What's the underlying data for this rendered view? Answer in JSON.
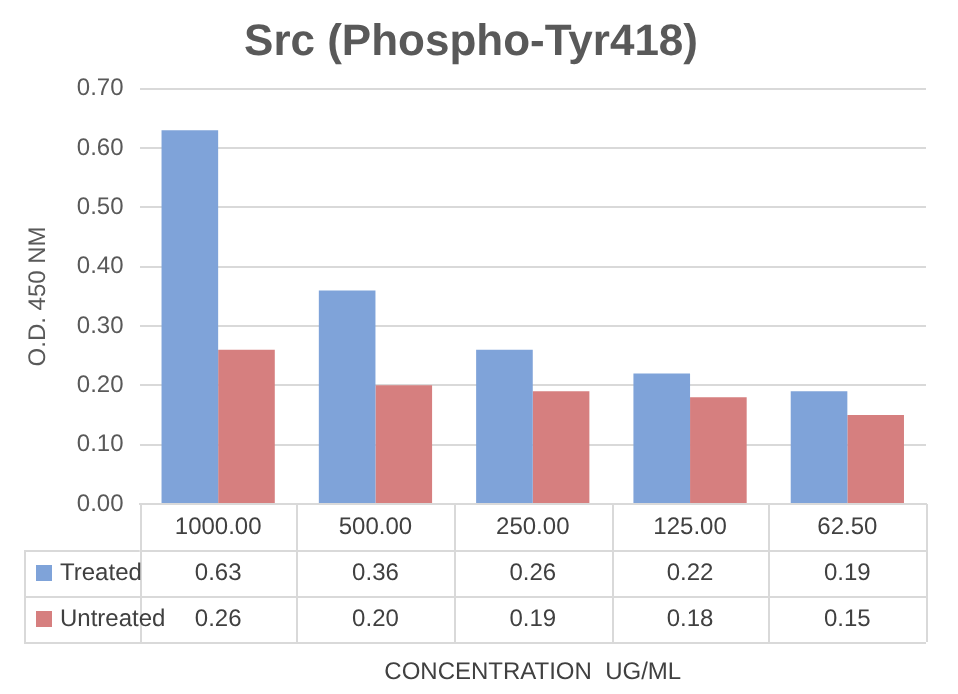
{
  "chart_data": {
    "type": "bar",
    "title": "Src (Phospho-Tyr418)",
    "xlabel": "CONCENTRATION  UG/ML",
    "ylabel": "O.D. 450 NM",
    "categories": [
      "1000.00",
      "500.00",
      "250.00",
      "125.00",
      "62.50"
    ],
    "series": [
      {
        "name": "Treated",
        "color": "#7fa3d9",
        "values": [
          0.63,
          0.36,
          0.26,
          0.22,
          0.19
        ],
        "value_labels": [
          "0.63",
          "0.36",
          "0.26",
          "0.22",
          "0.19"
        ]
      },
      {
        "name": "Untreated",
        "color": "#d67f7f",
        "values": [
          0.26,
          0.2,
          0.19,
          0.18,
          0.15
        ],
        "value_labels": [
          "0.26",
          "0.20",
          "0.19",
          "0.18",
          "0.15"
        ]
      }
    ],
    "ylim": [
      0,
      0.7
    ],
    "yticks": [
      {
        "value": 0,
        "label": "0.00"
      },
      {
        "value": 0.1,
        "label": "0.10"
      },
      {
        "value": 0.2,
        "label": "0.20"
      },
      {
        "value": 0.3,
        "label": "0.30"
      },
      {
        "value": 0.4,
        "label": "0.40"
      },
      {
        "value": 0.5,
        "label": "0.50"
      },
      {
        "value": 0.6,
        "label": "0.60"
      },
      {
        "value": 0.7,
        "label": "0.70"
      }
    ],
    "grid": "y",
    "legend": "bottom"
  }
}
